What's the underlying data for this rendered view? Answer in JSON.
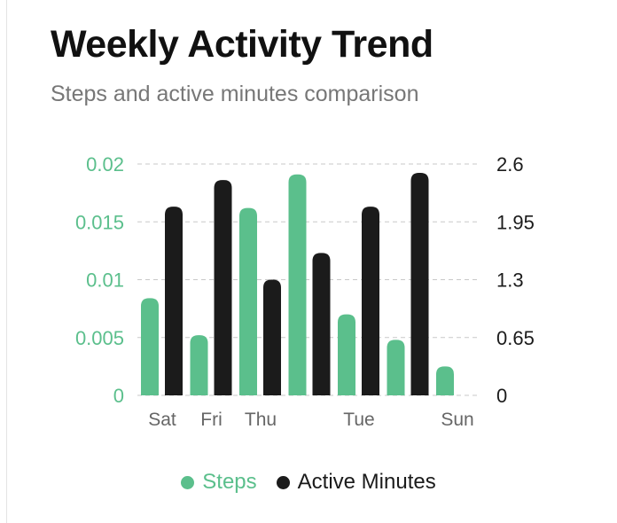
{
  "title": "Weekly Activity Trend",
  "subtitle": "Steps and active minutes comparison",
  "colors": {
    "steps": "#5bbf8c",
    "active_minutes": "#1b1b1b",
    "left_axis_text": "#5bbf8c",
    "right_axis_text": "#1b1b1b",
    "grid": "#c8c8c8"
  },
  "legend": {
    "steps": "Steps",
    "active_minutes": "Active Minutes"
  },
  "chart_data": {
    "type": "bar",
    "title": "Weekly Activity Trend",
    "subtitle": "Steps and active minutes comparison",
    "x_tick_labels": [
      "Sat",
      "Fri",
      "Thu",
      "",
      "Tue",
      "",
      "Sun"
    ],
    "series": [
      {
        "name": "Steps",
        "axis": "left",
        "values": [
          0.0084,
          0.0052,
          0.0162,
          0.0191,
          0.007,
          0.0048,
          0.0025
        ]
      },
      {
        "name": "Active Minutes",
        "axis": "right",
        "values": [
          2.12,
          2.42,
          1.3,
          1.6,
          2.12,
          2.5,
          null
        ]
      }
    ],
    "y_left": {
      "ticks": [
        "0",
        "0.005",
        "0.01",
        "0.015",
        "0.02"
      ],
      "lim": [
        0,
        0.02
      ]
    },
    "y_right": {
      "ticks": [
        "0",
        "0.65",
        "1.3",
        "1.95",
        "2.6"
      ],
      "lim": [
        0,
        2.6
      ]
    },
    "grid": true,
    "grid_style": "dashed",
    "legend_position": "bottom"
  }
}
